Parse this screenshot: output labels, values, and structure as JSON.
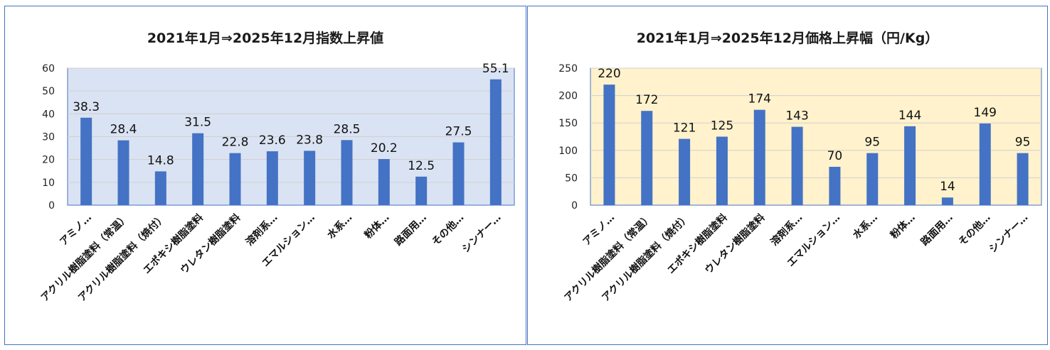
{
  "chart_data": [
    {
      "type": "bar",
      "title": "2021年1月⇒2025年12月指数上昇値",
      "categories": [
        "アミノ…",
        "アクリル樹脂塗料（常温）",
        "アクリル樹脂塗料（焼付）",
        "エポキシ樹脂塗料",
        "ウレタン樹脂塗料",
        "溶剤系…",
        "エマルション…",
        "水系…",
        "粉体…",
        "路面用…",
        "その他…",
        "シンナー…"
      ],
      "values": [
        38.3,
        28.4,
        14.8,
        31.5,
        22.8,
        23.6,
        23.8,
        28.5,
        20.2,
        12.5,
        27.5,
        55.1
      ],
      "data_labels": [
        "38.3",
        "28.4",
        "14.8",
        "31.5",
        "22.8",
        "23.6",
        "23.8",
        "28.5",
        "20.2",
        "12.5",
        "27.5",
        "55.1"
      ],
      "yticks": [
        "0",
        "10",
        "20",
        "30",
        "40",
        "50",
        "60"
      ],
      "ylim": [
        0,
        60
      ],
      "grid": true,
      "legend": "none",
      "bar_color": "#4472c4",
      "plot_bg": "#dae3f3",
      "border_color": "#4472c4"
    },
    {
      "type": "bar",
      "title": "2021年1月⇒2025年12月価格上昇幅（円/Kg）",
      "categories": [
        "アミノ…",
        "アクリル樹脂塗料（常温）",
        "アクリル樹脂塗料（焼付）",
        "エポキシ樹脂塗料",
        "ウレタン樹脂塗料",
        "溶剤系…",
        "エマルション…",
        "水系…",
        "粉体…",
        "路面用…",
        "その他…",
        "シンナー…"
      ],
      "values": [
        220,
        172,
        121,
        125,
        174,
        143,
        70,
        95,
        144,
        14,
        149,
        95
      ],
      "data_labels": [
        "220",
        "172",
        "121",
        "125",
        "174",
        "143",
        "70",
        "95",
        "144",
        "14",
        "149",
        "95"
      ],
      "yticks": [
        "0",
        "50",
        "100",
        "150",
        "200",
        "250"
      ],
      "ylim": [
        0,
        250
      ],
      "grid": true,
      "legend": "none",
      "bar_color": "#4472c4",
      "plot_bg": "#fff2cc",
      "border_color": "#4472c4"
    }
  ]
}
